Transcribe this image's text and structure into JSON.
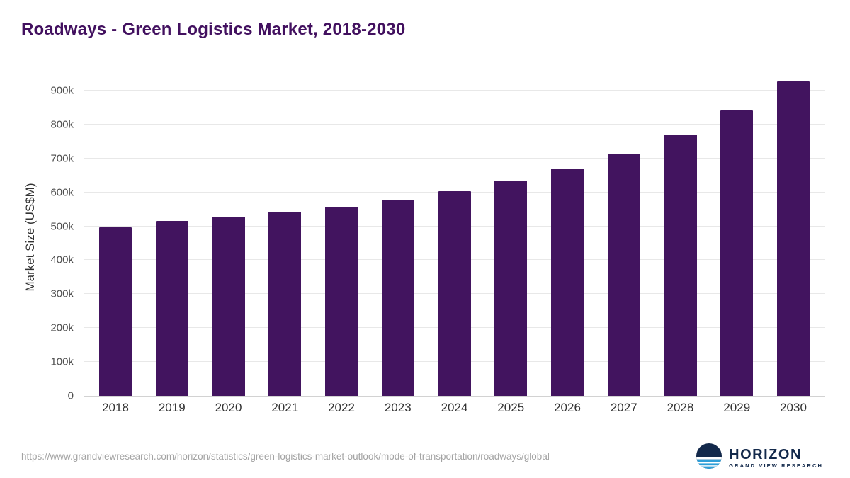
{
  "title": "Roadways - Green Logistics Market, 2018-2030",
  "chart_data": {
    "type": "bar",
    "title": "Roadways - Green Logistics Market, 2018-2030",
    "categories": [
      "2018",
      "2019",
      "2020",
      "2021",
      "2022",
      "2023",
      "2024",
      "2025",
      "2026",
      "2027",
      "2028",
      "2029",
      "2030"
    ],
    "values": [
      497000,
      515000,
      528000,
      542000,
      558000,
      579000,
      604000,
      634000,
      671000,
      715000,
      770000,
      842000,
      928000
    ],
    "xlabel": "",
    "ylabel": "Market Size (US$M)",
    "ylim": [
      0,
      950000
    ],
    "ytick_step": 100000,
    "ytick_labels": [
      "0",
      "100k",
      "200k",
      "300k",
      "400k",
      "500k",
      "600k",
      "700k",
      "800k",
      "900k"
    ],
    "bar_color": "#42145f",
    "grid": true,
    "legend": "none"
  },
  "footer": {
    "source_url": "https://www.grandviewresearch.com/horizon/statistics/green-logistics-market-outlook/mode-of-transportation/roadways/global",
    "logo_name": "HORIZON",
    "logo_subtitle": "GRAND VIEW RESEARCH"
  },
  "colors": {
    "bar": "#42145f",
    "title_text": "#42105f",
    "gridline": "#e8e8e8",
    "axis_text": "#333333",
    "source_text": "#a3a3a3",
    "logo_navy": "#13294b",
    "logo_blue": "#2f9fd8"
  }
}
